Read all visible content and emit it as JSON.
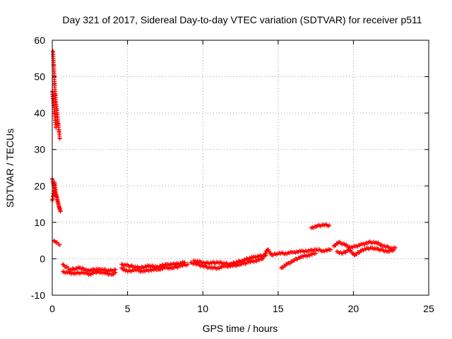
{
  "chart_data": {
    "type": "scatter",
    "title": "Day 321 of 2017, Sidereal Day-to-day VTEC variation (SDTVAR) for receiver p511",
    "xlabel": "GPS time / hours",
    "ylabel": "SDTVAR / TECUs",
    "xlim": [
      0,
      25
    ],
    "ylim": [
      -10,
      60
    ],
    "xticks": [
      0,
      5,
      10,
      15,
      20,
      25
    ],
    "yticks": [
      -10,
      0,
      10,
      20,
      30,
      40,
      50,
      60
    ],
    "grid": true,
    "marker": "+",
    "color": "#ff0000",
    "series": [
      {
        "name": "p511",
        "segments": [
          {
            "x": [
              0.05,
              0.1,
              0.15,
              0.2,
              0.25,
              0.3,
              0.35,
              0.4,
              0.45,
              0.5
            ],
            "y": [
              57,
              53,
              48,
              45,
              43,
              41,
              39,
              37,
              35,
              33
            ]
          },
          {
            "x": [
              0.0,
              0.05,
              0.1,
              0.15,
              0.2,
              0.25
            ],
            "y": [
              46,
              44,
              42,
              40,
              38,
              36
            ]
          },
          {
            "x": [
              0.0,
              0.1,
              0.2,
              0.3,
              0.4,
              0.5
            ],
            "y": [
              22,
              20,
              18,
              17,
              15,
              13.5
            ]
          },
          {
            "x": [
              0.0,
              0.1,
              0.15,
              0.25,
              0.35,
              0.45,
              0.55
            ],
            "y": [
              16,
              18,
              21,
              17.5,
              16,
              14.5,
              13
            ]
          },
          {
            "x": [
              0.1,
              0.25,
              0.4,
              0.5
            ],
            "y": [
              5,
              4.5,
              4,
              3.8
            ]
          },
          {
            "x": [
              0.7,
              1.0,
              1.5,
              2.0,
              2.5,
              3.0,
              3.5,
              4.0,
              4.2
            ],
            "y": [
              -3.5,
              -3.8,
              -4,
              -3.8,
              -4.2,
              -3.5,
              -4,
              -4.3,
              -3.8
            ]
          },
          {
            "x": [
              0.7,
              0.9,
              1.2,
              1.8,
              2.4,
              3.1,
              3.8,
              4.2
            ],
            "y": [
              -1.5,
              -2.2,
              -3,
              -2.5,
              -3.2,
              -2.8,
              -3.3,
              -3
            ]
          },
          {
            "x": [
              4.6,
              5.0,
              5.5,
              6.0,
              6.5,
              7.0,
              7.5,
              8.0,
              8.5,
              9.0
            ],
            "y": [
              -2.5,
              -3.5,
              -3,
              -3.5,
              -3,
              -3,
              -2.5,
              -2.5,
              -2,
              -1.5
            ]
          },
          {
            "x": [
              4.6,
              5.2,
              5.8,
              6.4,
              7.0,
              7.6,
              8.2,
              8.8
            ],
            "y": [
              -1.5,
              -2,
              -2.5,
              -2,
              -2.2,
              -1.5,
              -1.5,
              -1
            ]
          },
          {
            "x": [
              9.2,
              9.6,
              10.0,
              10.5,
              11.0,
              11.5,
              12.0,
              12.5,
              13.0,
              13.5,
              14.0
            ],
            "y": [
              -1,
              -1.5,
              -2,
              -2.5,
              -2.5,
              -2,
              -2,
              -1.5,
              -1,
              -0.5,
              0
            ]
          },
          {
            "x": [
              9.4,
              10.2,
              11.0,
              11.8,
              12.6,
              13.4,
              14.2
            ],
            "y": [
              -0.5,
              -1.2,
              -1,
              -1.5,
              -0.5,
              0.5,
              1
            ]
          },
          {
            "x": [
              14.0,
              14.3,
              14.6,
              15.0,
              15.5,
              16.0,
              16.5,
              17.0,
              17.5,
              18.0,
              18.5
            ],
            "y": [
              0.5,
              2.5,
              1,
              1.5,
              1.5,
              1.8,
              2,
              2.2,
              2.5,
              2.2,
              2.5
            ]
          },
          {
            "x": [
              15.2,
              15.6,
              16.0,
              16.5,
              17.0,
              17.5
            ],
            "y": [
              -2.5,
              -1.5,
              -0.5,
              0.5,
              1,
              1.5
            ]
          },
          {
            "x": [
              17.2,
              17.6,
              18.0,
              18.4
            ],
            "y": [
              8.5,
              9,
              9.3,
              9.2
            ]
          },
          {
            "x": [
              18.7,
              19.0,
              19.4,
              19.8,
              20.2,
              20.6,
              21.0,
              21.5,
              22.0,
              22.5,
              22.8
            ],
            "y": [
              3.5,
              4.5,
              4,
              3,
              3.5,
              4,
              4.5,
              4.5,
              3.5,
              3,
              3
            ]
          },
          {
            "x": [
              18.9,
              19.3,
              19.7,
              20.1,
              20.6,
              21.2,
              21.8,
              22.3,
              22.7
            ],
            "y": [
              2,
              1.5,
              2.5,
              1,
              2.5,
              3,
              2.5,
              2,
              2.5
            ]
          }
        ]
      }
    ]
  }
}
